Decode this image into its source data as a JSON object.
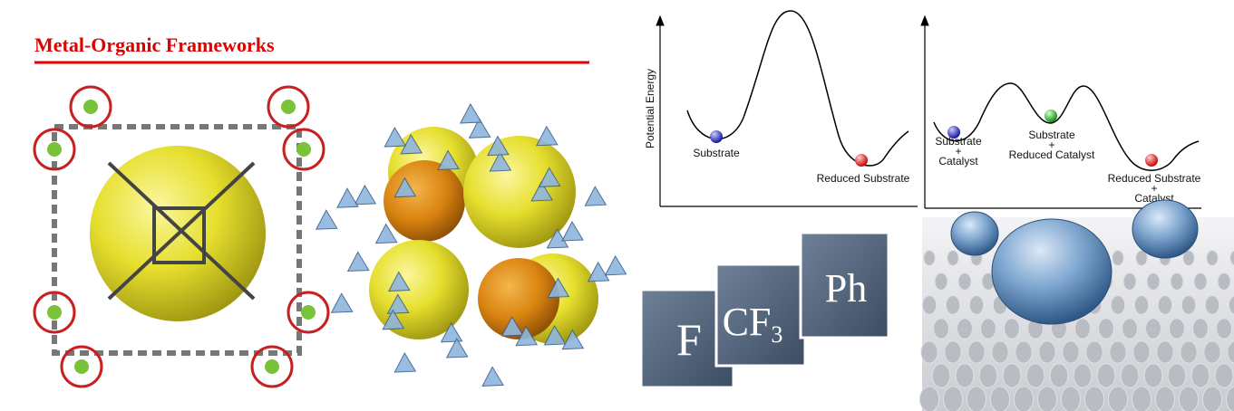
{
  "header": {
    "title": "Metal-Organic Frameworks"
  },
  "energy_diagrams": [
    {
      "y_label": "Potential Energy",
      "states": [
        {
          "lines": [
            "Substrate"
          ]
        },
        {
          "lines": [
            "Reduced Substrate"
          ]
        }
      ]
    },
    {
      "states": [
        {
          "lines": [
            "Substrate",
            "+",
            "Catalyst"
          ]
        },
        {
          "lines": [
            "Substrate",
            "+",
            "Reduced Catalyst"
          ]
        },
        {
          "lines": [
            "Reduced Substrate",
            "+",
            "Catalyst"
          ]
        }
      ]
    }
  ],
  "tiles": [
    {
      "text": "F"
    },
    {
      "text": "CF",
      "subscript": "3"
    },
    {
      "text": "Ph"
    }
  ]
}
